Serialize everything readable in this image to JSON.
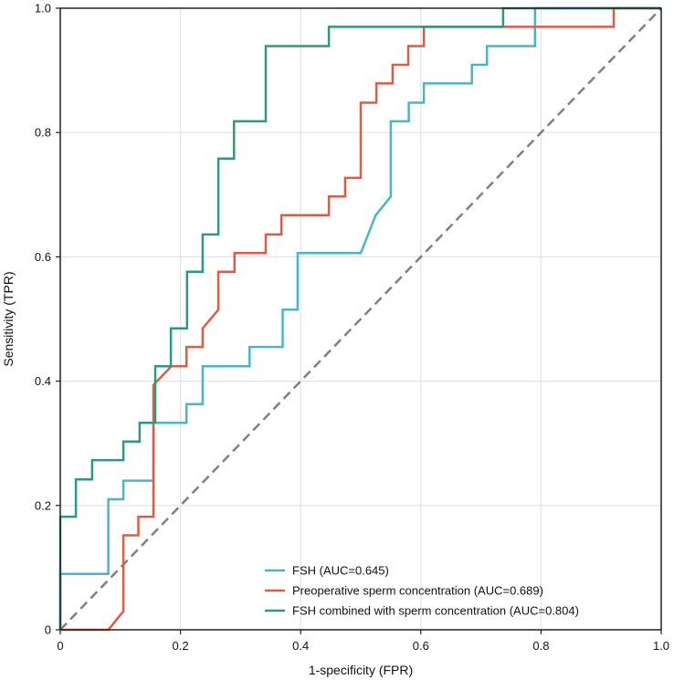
{
  "chart_data": {
    "type": "line",
    "title": "",
    "xlabel": "1-specificity (FPR)",
    "ylabel": "Sensitivity (TPR)",
    "xlim": [
      0,
      1
    ],
    "ylim": [
      0,
      1
    ],
    "x_ticks": [
      0,
      0.2,
      0.4,
      0.6,
      0.8,
      1.0
    ],
    "x_tick_labels": [
      "0",
      "0.2",
      "0.4",
      "0.6",
      "0.8",
      "1.0"
    ],
    "y_ticks": [
      0,
      0.2,
      0.4,
      0.6,
      0.8,
      1.0
    ],
    "y_tick_labels": [
      "0",
      "0.2",
      "0.4",
      "0.6",
      "0.8",
      "1.0"
    ],
    "grid": true,
    "legend_position": "bottom-right",
    "reference_line": {
      "name": "chance",
      "x": [
        0,
        1
      ],
      "y": [
        0,
        1
      ],
      "color": "#808080",
      "style": "dashed"
    },
    "series": [
      {
        "name": "FSH (AUC=0.645)",
        "color": "#4bb5c8",
        "x": [
          0,
          0,
          0.08,
          0.08,
          0.105,
          0.105,
          0.155,
          0.155,
          0.21,
          0.21,
          0.237,
          0.237,
          0.315,
          0.315,
          0.37,
          0.37,
          0.395,
          0.395,
          0.5,
          0.525,
          0.55,
          0.55,
          0.58,
          0.58,
          0.605,
          0.605,
          0.685,
          0.685,
          0.71,
          0.71,
          0.79,
          0.79,
          1.0
        ],
        "y": [
          0,
          0.09,
          0.09,
          0.21,
          0.21,
          0.24,
          0.24,
          0.333,
          0.333,
          0.363,
          0.363,
          0.424,
          0.424,
          0.455,
          0.455,
          0.515,
          0.515,
          0.606,
          0.606,
          0.667,
          0.697,
          0.818,
          0.818,
          0.848,
          0.848,
          0.879,
          0.879,
          0.909,
          0.909,
          0.939,
          0.939,
          1.0,
          1.0
        ]
      },
      {
        "name": "Preoperative sperm concentration (AUC=0.689)",
        "color": "#e05a44",
        "x": [
          0,
          0.08,
          0.105,
          0.105,
          0.13,
          0.13,
          0.155,
          0.155,
          0.185,
          0.21,
          0.21,
          0.237,
          0.237,
          0.263,
          0.263,
          0.29,
          0.29,
          0.342,
          0.342,
          0.368,
          0.368,
          0.447,
          0.447,
          0.474,
          0.474,
          0.5,
          0.5,
          0.526,
          0.526,
          0.553,
          0.553,
          0.579,
          0.579,
          0.605,
          0.605,
          0.921,
          0.921,
          1.0
        ],
        "y": [
          0,
          0,
          0.03,
          0.152,
          0.152,
          0.182,
          0.182,
          0.394,
          0.424,
          0.424,
          0.455,
          0.455,
          0.485,
          0.515,
          0.576,
          0.576,
          0.606,
          0.606,
          0.636,
          0.636,
          0.667,
          0.667,
          0.697,
          0.697,
          0.727,
          0.727,
          0.848,
          0.848,
          0.879,
          0.879,
          0.909,
          0.909,
          0.939,
          0.939,
          0.97,
          0.97,
          1.0,
          1.0
        ]
      },
      {
        "name": "FSH combined with sperm concentration (AUC=0.804)",
        "color": "#2a9a84",
        "x": [
          0,
          0,
          0.026,
          0.026,
          0.053,
          0.053,
          0.105,
          0.105,
          0.132,
          0.132,
          0.158,
          0.158,
          0.184,
          0.184,
          0.211,
          0.211,
          0.237,
          0.237,
          0.263,
          0.263,
          0.289,
          0.289,
          0.342,
          0.342,
          0.447,
          0.447,
          0.737,
          0.737,
          1.0
        ],
        "y": [
          0,
          0.182,
          0.182,
          0.242,
          0.242,
          0.273,
          0.273,
          0.303,
          0.303,
          0.333,
          0.333,
          0.424,
          0.424,
          0.485,
          0.485,
          0.576,
          0.576,
          0.636,
          0.636,
          0.758,
          0.758,
          0.818,
          0.818,
          0.939,
          0.939,
          0.97,
          0.97,
          1.0,
          1.0
        ]
      }
    ]
  }
}
